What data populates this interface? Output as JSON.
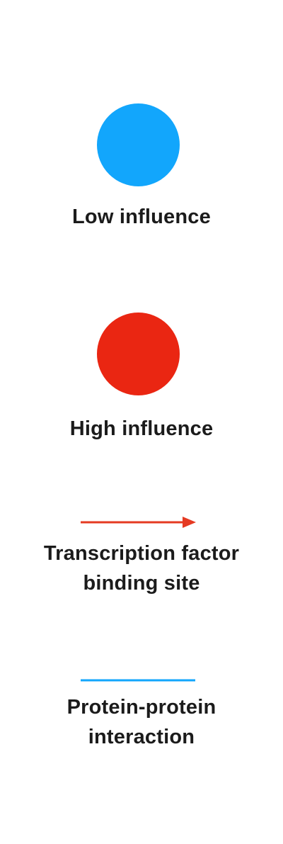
{
  "legend": {
    "low_influence": {
      "label": "Low influence",
      "color": "#12A6FC",
      "shape": "circle"
    },
    "high_influence": {
      "label": "High influence",
      "color": "#EA2612",
      "shape": "circle"
    },
    "tf_binding": {
      "label_line1": "Transcription factor",
      "label_line2": "binding site",
      "color": "#E53A22",
      "shape": "arrow"
    },
    "ppi": {
      "label_line1": "Protein-protein",
      "label_line2": "interaction",
      "color": "#12A6FC",
      "shape": "line"
    }
  }
}
